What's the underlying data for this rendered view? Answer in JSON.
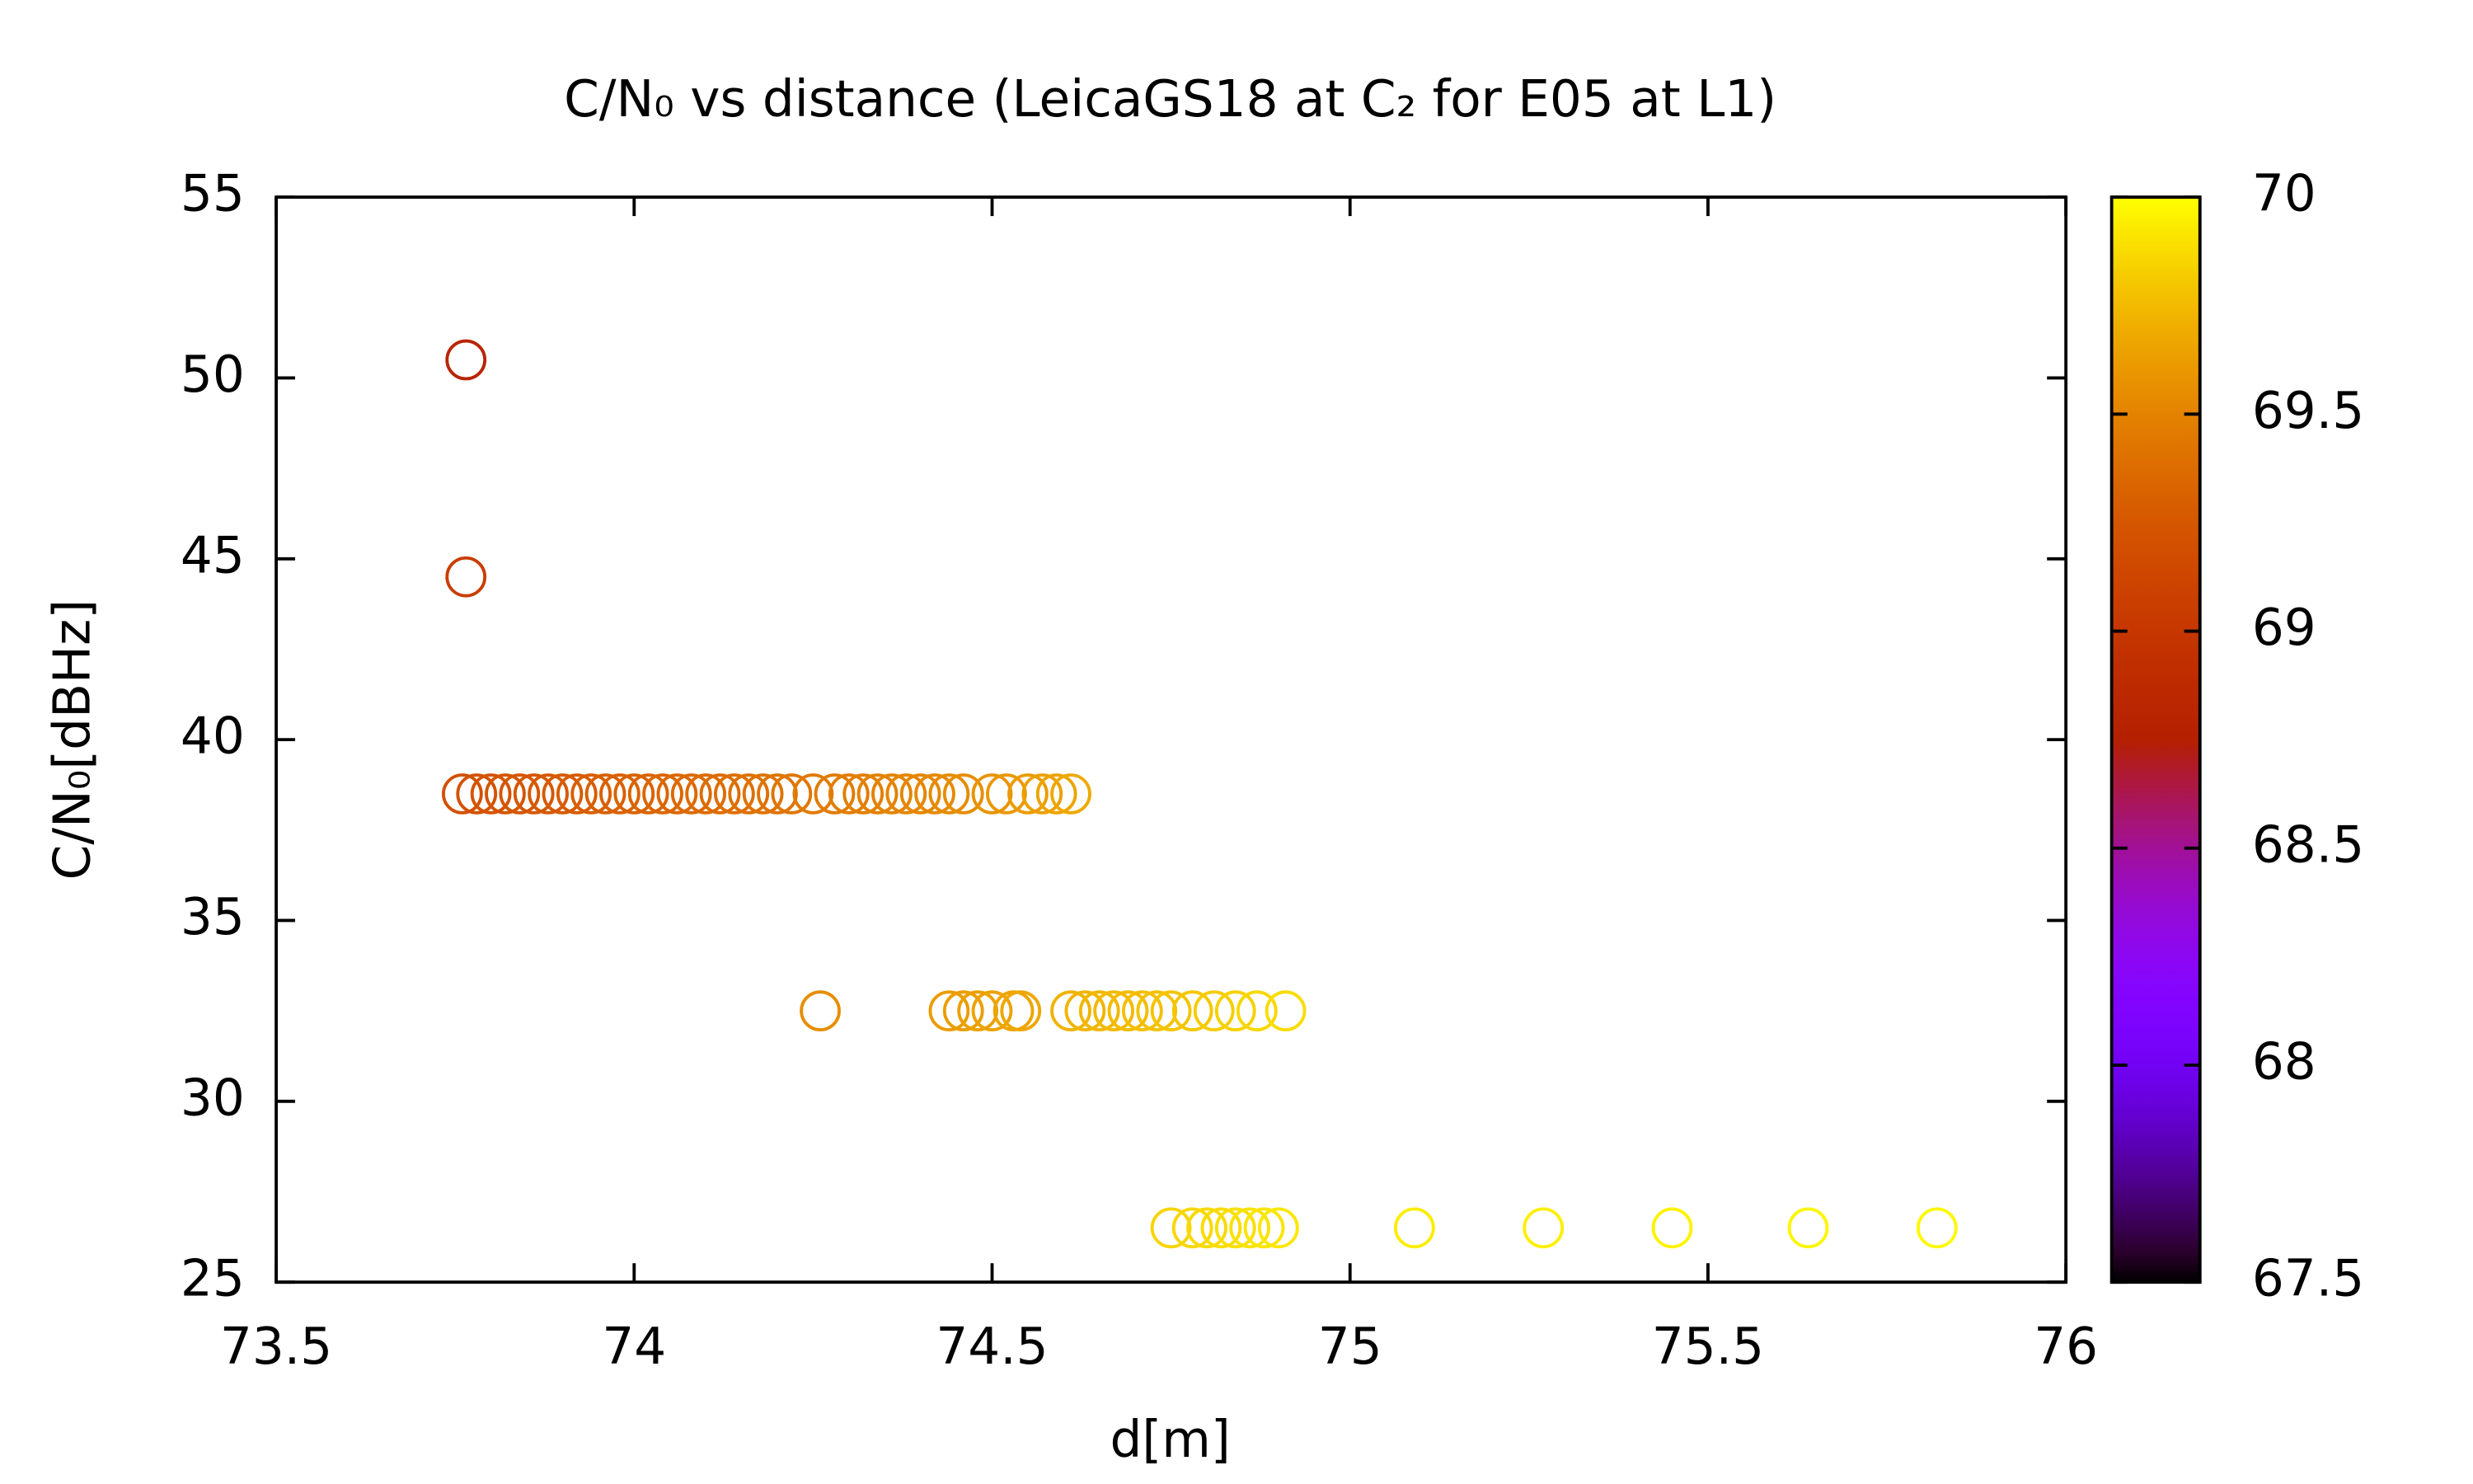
{
  "chart_data": {
    "type": "scatter",
    "title": "C/N₀ vs distance (LeicaGS18 at C₂ for E05 at L1)",
    "xlabel": "d[m]",
    "ylabel": "C/N₀[dBHz]",
    "xlim": [
      73.5,
      76
    ],
    "xticks": [
      73.5,
      74,
      74.5,
      75,
      75.5,
      76
    ],
    "ylim": [
      25,
      55
    ],
    "yticks": [
      25,
      30,
      35,
      40,
      45,
      50,
      55
    ],
    "clim": [
      67.5,
      70
    ],
    "cticks": [
      67.5,
      68,
      68.5,
      69,
      69.5,
      70
    ],
    "colormap": "gnuplot",
    "marker": "open-circle",
    "x": [
      73.765,
      73.765,
      73.76,
      73.78,
      73.8,
      73.82,
      73.84,
      73.86,
      73.88,
      73.9,
      73.92,
      73.94,
      73.96,
      73.98,
      74.0,
      74.02,
      74.04,
      74.06,
      74.08,
      74.1,
      74.12,
      74.14,
      74.16,
      74.18,
      74.2,
      74.22,
      74.25,
      74.28,
      74.3,
      74.32,
      74.34,
      74.36,
      74.38,
      74.4,
      74.42,
      74.44,
      74.46,
      74.5,
      74.52,
      74.55,
      74.57,
      74.59,
      74.61,
      74.26,
      74.44,
      74.46,
      74.48,
      74.5,
      74.53,
      74.54,
      74.61,
      74.63,
      74.65,
      74.67,
      74.69,
      74.71,
      74.73,
      74.75,
      74.78,
      74.81,
      74.84,
      74.87,
      74.91,
      74.75,
      74.78,
      74.8,
      74.82,
      74.84,
      74.86,
      74.88,
      74.9,
      75.09,
      75.27,
      75.45,
      75.64,
      75.82
    ],
    "y": [
      50.5,
      44.5,
      38.5,
      38.5,
      38.5,
      38.5,
      38.5,
      38.5,
      38.5,
      38.5,
      38.5,
      38.5,
      38.5,
      38.5,
      38.5,
      38.5,
      38.5,
      38.5,
      38.5,
      38.5,
      38.5,
      38.5,
      38.5,
      38.5,
      38.5,
      38.5,
      38.5,
      38.5,
      38.5,
      38.5,
      38.5,
      38.5,
      38.5,
      38.5,
      38.5,
      38.5,
      38.5,
      38.5,
      38.5,
      38.5,
      38.5,
      38.5,
      38.5,
      32.5,
      32.5,
      32.5,
      32.5,
      32.5,
      32.5,
      32.5,
      32.5,
      32.5,
      32.5,
      32.5,
      32.5,
      32.5,
      32.5,
      32.5,
      32.5,
      32.5,
      32.5,
      32.5,
      32.5,
      26.5,
      26.5,
      26.5,
      26.5,
      26.5,
      26.5,
      26.5,
      26.5,
      26.5,
      26.5,
      26.5,
      26.5,
      26.5
    ],
    "color_values": [
      68.8,
      69.05,
      69.2,
      69.21,
      69.22,
      69.23,
      69.24,
      69.25,
      69.26,
      69.27,
      69.28,
      69.29,
      69.3,
      69.31,
      69.32,
      69.33,
      69.34,
      69.35,
      69.36,
      69.37,
      69.38,
      69.39,
      69.4,
      69.41,
      69.42,
      69.43,
      69.45,
      69.46,
      69.47,
      69.48,
      69.49,
      69.5,
      69.51,
      69.52,
      69.53,
      69.54,
      69.55,
      69.58,
      69.6,
      69.62,
      69.64,
      69.66,
      69.68,
      69.55,
      69.62,
      69.63,
      69.64,
      69.65,
      69.66,
      69.67,
      69.72,
      69.73,
      69.74,
      69.75,
      69.76,
      69.77,
      69.78,
      69.79,
      69.8,
      69.82,
      69.84,
      69.86,
      69.88,
      69.85,
      69.86,
      69.87,
      69.88,
      69.89,
      69.9,
      69.91,
      69.92,
      69.94,
      69.95,
      69.96,
      69.97,
      69.98
    ]
  }
}
